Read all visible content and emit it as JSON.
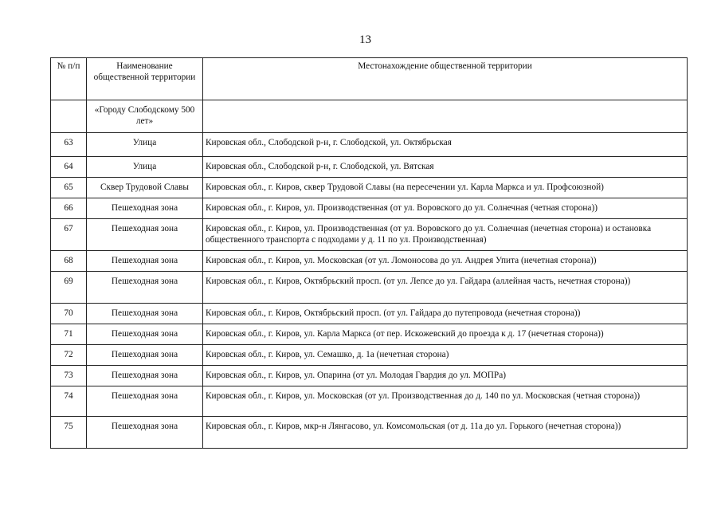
{
  "page_number": "13",
  "table": {
    "headers": [
      "№ п/п",
      "Наименование общественной территории",
      "Местонахождение общественной территории"
    ],
    "rows": [
      {
        "num": "",
        "name": "«Городу Слободскому 500 лет»",
        "location": ""
      },
      {
        "num": "63",
        "name": "Улица",
        "location": "Кировская обл., Слободской р-н, г. Слободской, ул. Октябрьская"
      },
      {
        "num": "64",
        "name": "Улица",
        "location": "Кировская обл., Слободской р-н, г. Слободской, ул. Вятская"
      },
      {
        "num": "65",
        "name": "Сквер Трудовой Славы",
        "location": "Кировская обл., г. Киров, сквер Трудовой Славы (на пересечении ул. Карла Маркса и ул. Профсоюзной)"
      },
      {
        "num": "66",
        "name": "Пешеходная зона",
        "location": "Кировская обл., г. Киров, ул. Производственная (от ул. Воровского до ул. Солнечная (четная сторона))"
      },
      {
        "num": "67",
        "name": "Пешеходная зона",
        "location": "Кировская обл., г. Киров, ул. Производственная (от ул. Воровского до ул. Солнечная (нечетная сторона) и остановка общественного транспорта с подходами у д. 11 по ул. Производственная)"
      },
      {
        "num": "68",
        "name": "Пешеходная зона",
        "location": "Кировская обл., г. Киров, ул. Московская (от ул. Ломоносова до ул. Андрея Упита (нечетная сторона))"
      },
      {
        "num": "69",
        "name": "Пешеходная зона",
        "location": "Кировская обл., г. Киров, Октябрьский просп. (от ул. Лепсе до ул. Гайдара (аллейная часть, нечетная сторона))"
      },
      {
        "num": "70",
        "name": "Пешеходная зона",
        "location": "Кировская обл., г. Киров, Октябрьский просп. (от ул. Гайдара до путепровода (нечетная сторона))"
      },
      {
        "num": "71",
        "name": "Пешеходная зона",
        "location": "Кировская обл., г. Киров, ул. Карла Маркса (от пер. Искожевский до проезда к д. 17 (нечетная сторона))"
      },
      {
        "num": "72",
        "name": "Пешеходная зона",
        "location": "Кировская обл., г. Киров, ул. Семашко, д. 1а (нечетная сторона)"
      },
      {
        "num": "73",
        "name": "Пешеходная зона",
        "location": "Кировская обл., г. Киров, ул. Опарина (от ул. Молодая Гвардия до ул. МОПРа)"
      },
      {
        "num": "74",
        "name": "Пешеходная зона",
        "location": "Кировская обл., г. Киров, ул. Московская (от ул. Производственная до д. 140 по ул. Московская (четная сторона))"
      },
      {
        "num": "75",
        "name": "Пешеходная зона",
        "location": "Кировская обл., г. Киров, мкр-н Лянгасово, ул. Комсомольская (от д. 11а до ул. Горького (нечетная сторона))"
      }
    ]
  }
}
